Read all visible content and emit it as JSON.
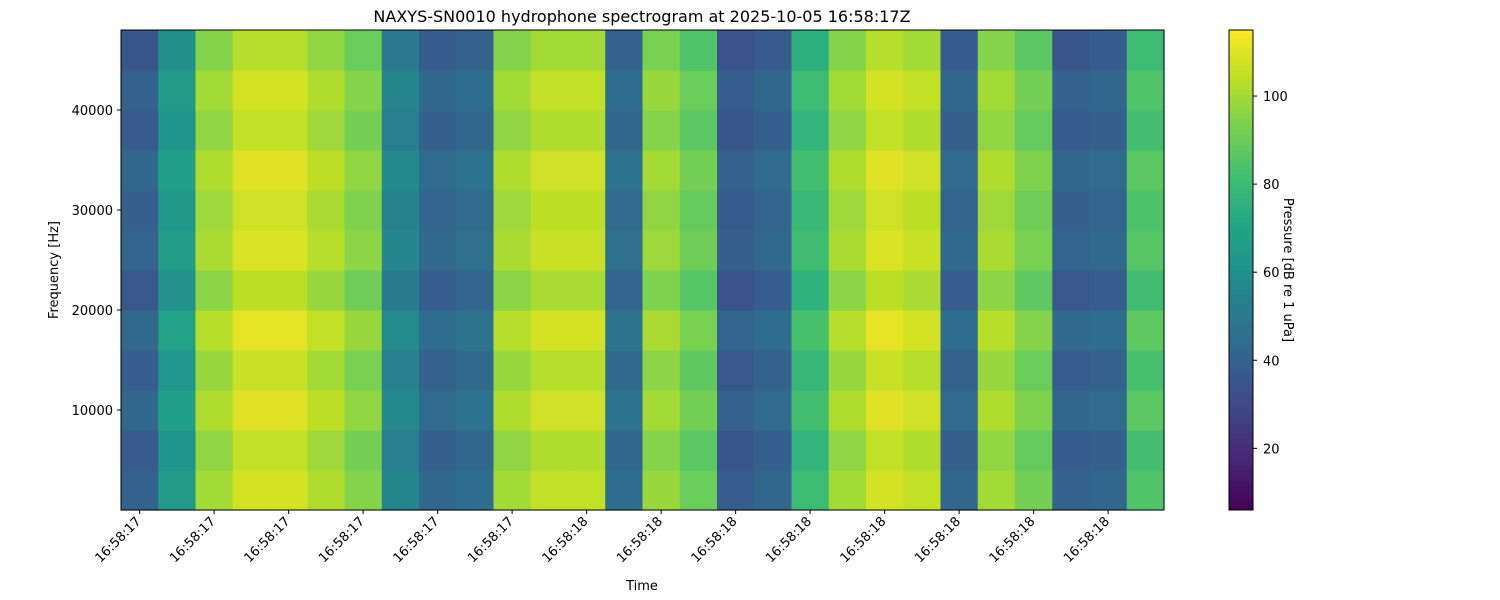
{
  "chart_data": {
    "type": "heatmap",
    "title": "NAXYS-SN0010 hydrophone spectrogram at 2025-10-05 16:58:17Z",
    "x_label": "Time",
    "y_label": "Frequency [Hz]",
    "colorbar_label": "Pressure [dB re 1 uPa]",
    "colormap": "viridis",
    "categories": [
      "16:58:17",
      null,
      "16:58:17",
      null,
      "16:58:17",
      null,
      "16:58:17",
      null,
      "16:58:17",
      null,
      "16:58:17",
      null,
      "16:58:18",
      null,
      "16:58:18",
      null,
      "16:58:18",
      null,
      "16:58:18",
      null,
      "16:58:18",
      null,
      "16:58:18",
      null,
      "16:58:18",
      null,
      "16:58:18",
      null
    ],
    "y": [
      2000,
      6000,
      10000,
      14000,
      18000,
      22000,
      26000,
      30000,
      34000,
      38000,
      42000,
      46000
    ],
    "ylim": [
      0,
      48000
    ],
    "yticks": [
      10000,
      20000,
      30000,
      40000
    ],
    "clim": [
      6,
      115
    ],
    "cticks": [
      20,
      40,
      60,
      80,
      100
    ],
    "z": [
      [
        40,
        65,
        100,
        108,
        108,
        102,
        95,
        55,
        42,
        45,
        100,
        105,
        105,
        45,
        98,
        90,
        38,
        42,
        80,
        100,
        108,
        105,
        42,
        100,
        92,
        40,
        42,
        85
      ],
      [
        37,
        62,
        97,
        105,
        105,
        99,
        92,
        52,
        39,
        42,
        97,
        102,
        102,
        42,
        95,
        87,
        35,
        39,
        77,
        97,
        105,
        102,
        39,
        97,
        89,
        37,
        39,
        82
      ],
      [
        42,
        67,
        102,
        110,
        110,
        104,
        97,
        57,
        44,
        47,
        102,
        107,
        107,
        47,
        100,
        92,
        40,
        44,
        82,
        102,
        110,
        107,
        44,
        102,
        94,
        42,
        44,
        87
      ],
      [
        38,
        63,
        98,
        106,
        106,
        100,
        93,
        53,
        40,
        43,
        98,
        103,
        103,
        43,
        96,
        88,
        36,
        40,
        78,
        98,
        106,
        103,
        40,
        98,
        90,
        38,
        40,
        83
      ],
      [
        43,
        68,
        103,
        111,
        111,
        105,
        98,
        58,
        45,
        48,
        103,
        108,
        108,
        48,
        101,
        93,
        41,
        45,
        83,
        103,
        111,
        108,
        45,
        103,
        95,
        43,
        45,
        88
      ],
      [
        36,
        61,
        96,
        104,
        104,
        98,
        91,
        51,
        38,
        41,
        96,
        101,
        101,
        41,
        94,
        86,
        34,
        38,
        76,
        96,
        104,
        101,
        38,
        96,
        88,
        36,
        38,
        81
      ],
      [
        41,
        66,
        101,
        109,
        109,
        103,
        96,
        56,
        43,
        46,
        101,
        106,
        106,
        46,
        99,
        91,
        39,
        43,
        81,
        101,
        109,
        106,
        43,
        101,
        93,
        41,
        43,
        86
      ],
      [
        39,
        64,
        99,
        107,
        107,
        101,
        94,
        54,
        41,
        44,
        99,
        104,
        104,
        44,
        97,
        89,
        37,
        41,
        79,
        99,
        107,
        104,
        41,
        99,
        91,
        39,
        41,
        84
      ],
      [
        42,
        67,
        102,
        110,
        110,
        104,
        97,
        57,
        44,
        47,
        102,
        107,
        107,
        47,
        100,
        92,
        40,
        44,
        82,
        102,
        110,
        107,
        44,
        102,
        94,
        42,
        44,
        87
      ],
      [
        37,
        62,
        97,
        105,
        105,
        99,
        92,
        52,
        39,
        42,
        97,
        102,
        102,
        42,
        95,
        87,
        35,
        39,
        77,
        97,
        105,
        102,
        39,
        97,
        89,
        37,
        39,
        82
      ],
      [
        40,
        65,
        100,
        108,
        108,
        102,
        95,
        55,
        42,
        45,
        100,
        105,
        105,
        45,
        98,
        90,
        38,
        42,
        80,
        100,
        108,
        105,
        42,
        100,
        92,
        40,
        42,
        85
      ],
      [
        35,
        60,
        95,
        103,
        103,
        97,
        90,
        50,
        37,
        40,
        95,
        100,
        100,
        40,
        93,
        85,
        33,
        37,
        75,
        95,
        103,
        100,
        37,
        95,
        87,
        35,
        37,
        80
      ]
    ]
  }
}
